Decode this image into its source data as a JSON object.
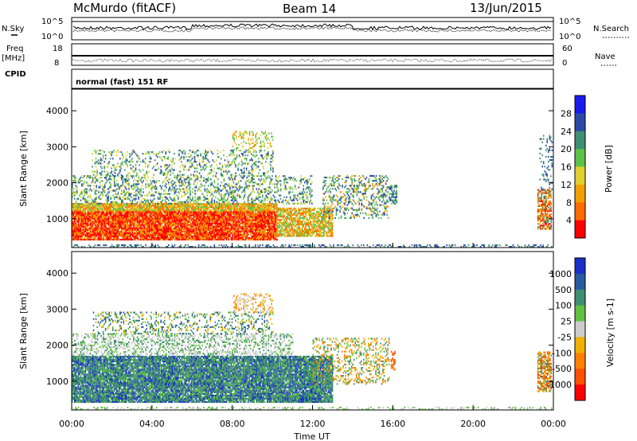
{
  "header": {
    "station": "McMurdo (fitACF)",
    "beam": "Beam 14",
    "date": "13/Jun/2015",
    "cpid_text": "normal (fast) 151 RF"
  },
  "strip_labels": {
    "nsky": "N.Sky",
    "freq_top": "Freq",
    "freq_bottom": "[MHz]",
    "cpid": "CPID",
    "nsearch": "N.Search",
    "nave": "Nave",
    "noise_left_ticks": [
      "10^5",
      "10^0"
    ],
    "noise_right_ticks": [
      "10^5",
      "10^0"
    ],
    "freq_ticks": [
      "18",
      "8"
    ],
    "nave_ticks": [
      "60",
      "0"
    ]
  },
  "chart_data": [
    {
      "type": "heatmap",
      "name": "power",
      "ylabel": "Slant Range [km]",
      "ylim": [
        200,
        4600
      ],
      "yticks": [
        "1000",
        "2000",
        "3000",
        "4000"
      ],
      "colorbar_label": "Power [dB]",
      "colorbar_ticks": [
        "4",
        "8",
        "12",
        "16",
        "20",
        "24",
        "28"
      ],
      "colorbar_colors": [
        "#1a1af0",
        "#2a4aa8",
        "#3f8f73",
        "#5dc24a",
        "#e0d030",
        "#f0a000",
        "#ff6a00",
        "#ff0000"
      ]
    },
    {
      "type": "heatmap",
      "name": "velocity",
      "ylabel": "Slant Range [km]",
      "ylim": [
        200,
        4600
      ],
      "yticks": [
        "1000",
        "2000",
        "3000",
        "4000"
      ],
      "colorbar_label": "Velocity [m s-1]",
      "colorbar_ticks": [
        "1000",
        "500",
        "100",
        "25",
        "-25",
        "-100",
        "-500",
        "-1000"
      ],
      "colorbar_colors": [
        "#1a30c8",
        "#2a5aa0",
        "#3f8f73",
        "#60c040",
        "#cccccc",
        "#f0b000",
        "#ff8000",
        "#ff5000",
        "#ff0000"
      ],
      "xticks": [
        "00:00",
        "04:00",
        "08:00",
        "12:00",
        "16:00",
        "20:00",
        "00:00"
      ],
      "xlabel": "Time UT"
    }
  ]
}
